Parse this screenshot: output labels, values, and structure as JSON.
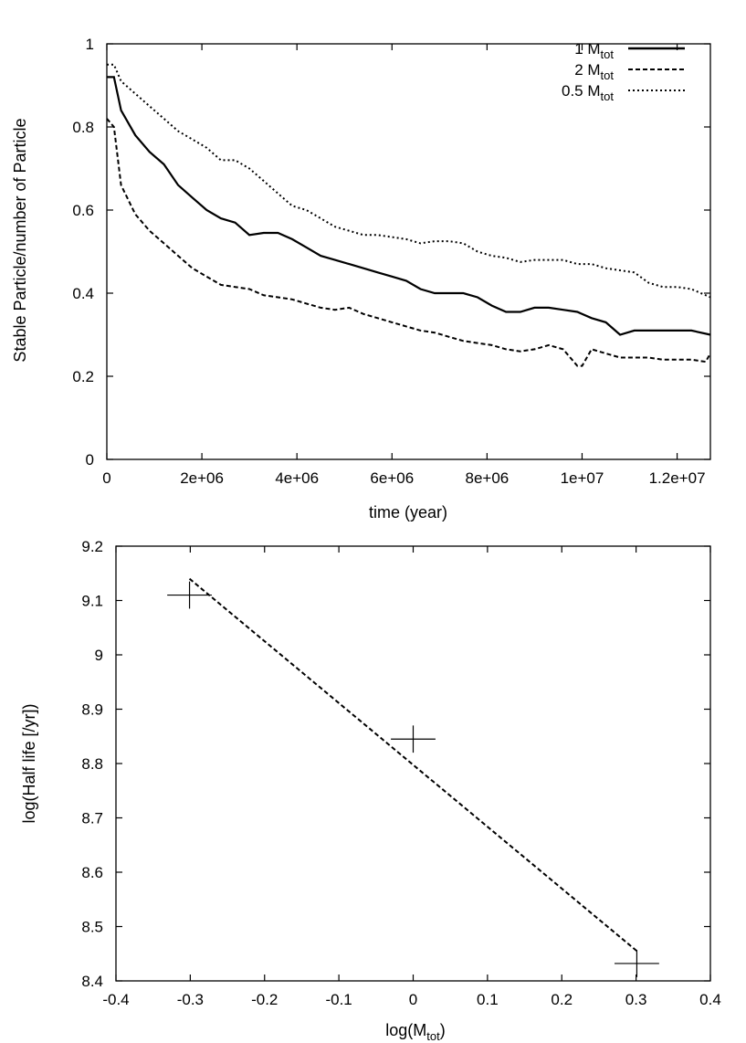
{
  "chart_data": [
    {
      "type": "line",
      "title": "",
      "xlabel": "time (year)",
      "ylabel": "Stable Particle/number of Particle",
      "xlim": [
        0,
        12700000
      ],
      "ylim": [
        0,
        1.0
      ],
      "xticks": [
        0,
        2000000,
        4000000,
        6000000,
        8000000,
        10000000,
        12000000
      ],
      "xtick_labels": [
        "0",
        "2e+06",
        "4e+06",
        "6e+06",
        "8e+06",
        "1e+07",
        "1.2e+07"
      ],
      "yticks": [
        0,
        0.2,
        0.4,
        0.6,
        0.8,
        1
      ],
      "ytick_labels": [
        "0",
        "0.2",
        "0.4",
        "0.6",
        "0.8",
        "1"
      ],
      "grid": false,
      "legend_position": "top-right",
      "series": [
        {
          "name": "1 M",
          "name_sub": "tot",
          "style": "solid",
          "x": [
            0,
            150000,
            300000,
            600000,
            900000,
            1200000,
            1500000,
            1800000,
            2100000,
            2400000,
            2700000,
            3000000,
            3300000,
            3600000,
            3900000,
            4200000,
            4500000,
            4800000,
            5100000,
            5400000,
            5700000,
            6000000,
            6300000,
            6600000,
            6900000,
            7200000,
            7500000,
            7800000,
            8100000,
            8400000,
            8700000,
            9000000,
            9300000,
            9600000,
            9900000,
            10200000,
            10500000,
            10800000,
            11100000,
            11400000,
            11700000,
            12000000,
            12300000,
            12700000
          ],
          "y": [
            0.92,
            0.92,
            0.84,
            0.78,
            0.74,
            0.71,
            0.66,
            0.63,
            0.6,
            0.58,
            0.57,
            0.54,
            0.545,
            0.545,
            0.53,
            0.51,
            0.49,
            0.48,
            0.47,
            0.46,
            0.45,
            0.44,
            0.43,
            0.41,
            0.4,
            0.4,
            0.4,
            0.39,
            0.37,
            0.355,
            0.355,
            0.365,
            0.365,
            0.36,
            0.355,
            0.34,
            0.33,
            0.3,
            0.31,
            0.31,
            0.31,
            0.31,
            0.31,
            0.3
          ]
        },
        {
          "name": "2 M",
          "name_sub": "tot",
          "style": "dashed",
          "x": [
            0,
            150000,
            300000,
            600000,
            900000,
            1200000,
            1500000,
            1800000,
            2100000,
            2400000,
            2700000,
            3000000,
            3300000,
            3600000,
            3900000,
            4200000,
            4500000,
            4800000,
            5100000,
            5400000,
            5700000,
            6000000,
            6300000,
            6600000,
            6900000,
            7200000,
            7500000,
            7800000,
            8100000,
            8400000,
            8700000,
            9000000,
            9300000,
            9600000,
            9900000,
            10000000,
            10200000,
            10500000,
            10800000,
            11100000,
            11400000,
            11700000,
            12000000,
            12300000,
            12600000,
            12700000
          ],
          "y": [
            0.82,
            0.8,
            0.66,
            0.59,
            0.55,
            0.52,
            0.49,
            0.46,
            0.44,
            0.42,
            0.415,
            0.41,
            0.395,
            0.39,
            0.385,
            0.375,
            0.365,
            0.36,
            0.365,
            0.35,
            0.34,
            0.33,
            0.32,
            0.31,
            0.305,
            0.295,
            0.285,
            0.28,
            0.275,
            0.265,
            0.26,
            0.265,
            0.275,
            0.265,
            0.225,
            0.225,
            0.265,
            0.255,
            0.245,
            0.245,
            0.245,
            0.24,
            0.24,
            0.24,
            0.235,
            0.255
          ]
        },
        {
          "name": "0.5 M",
          "name_sub": "tot",
          "style": "dotted",
          "x": [
            0,
            150000,
            300000,
            600000,
            900000,
            1200000,
            1500000,
            1800000,
            2100000,
            2400000,
            2700000,
            3000000,
            3300000,
            3600000,
            3900000,
            4200000,
            4500000,
            4800000,
            5100000,
            5400000,
            5700000,
            6000000,
            6300000,
            6600000,
            6900000,
            7200000,
            7500000,
            7800000,
            8100000,
            8400000,
            8700000,
            9000000,
            9300000,
            9600000,
            9900000,
            10200000,
            10500000,
            10800000,
            11100000,
            11400000,
            11700000,
            12000000,
            12300000,
            12700000
          ],
          "y": [
            0.95,
            0.95,
            0.91,
            0.88,
            0.85,
            0.82,
            0.79,
            0.77,
            0.75,
            0.72,
            0.72,
            0.7,
            0.67,
            0.64,
            0.61,
            0.6,
            0.58,
            0.56,
            0.55,
            0.54,
            0.54,
            0.535,
            0.53,
            0.52,
            0.525,
            0.525,
            0.52,
            0.5,
            0.49,
            0.485,
            0.475,
            0.48,
            0.48,
            0.48,
            0.47,
            0.47,
            0.46,
            0.455,
            0.45,
            0.425,
            0.415,
            0.415,
            0.41,
            0.39
          ]
        }
      ]
    },
    {
      "type": "line",
      "title": "",
      "xlabel": "log(M",
      "xlabel_sub": "tot",
      "xlabel_suffix": ")",
      "ylabel": "log(Half life [/yr])",
      "xlim": [
        -0.4,
        0.4
      ],
      "ylim": [
        8.4,
        9.2
      ],
      "xticks": [
        -0.4,
        -0.3,
        -0.2,
        -0.1,
        0,
        0.1,
        0.2,
        0.3,
        0.4
      ],
      "xtick_labels": [
        "-0.4",
        "-0.3",
        "-0.2",
        "-0.1",
        "0",
        "0.1",
        "0.2",
        "0.3",
        "0.4"
      ],
      "yticks": [
        8.4,
        8.5,
        8.6,
        8.7,
        8.8,
        8.9,
        9.0,
        9.1,
        9.2
      ],
      "ytick_labels": [
        "8.4",
        "8.5",
        "8.6",
        "8.7",
        "8.8",
        "8.9",
        "9",
        "9.1",
        "9.2"
      ],
      "grid": false,
      "points": {
        "x": [
          -0.301,
          0.0,
          0.301
        ],
        "y": [
          9.11,
          8.845,
          8.432
        ],
        "x_err": [
          0.03,
          0.03,
          0.03
        ],
        "y_err": [
          0.025,
          0.025,
          0.025
        ],
        "marker": "plus"
      },
      "fit_line": {
        "style": "dashed",
        "x": [
          -0.301,
          0.301
        ],
        "y": [
          9.14,
          8.455
        ]
      }
    }
  ]
}
